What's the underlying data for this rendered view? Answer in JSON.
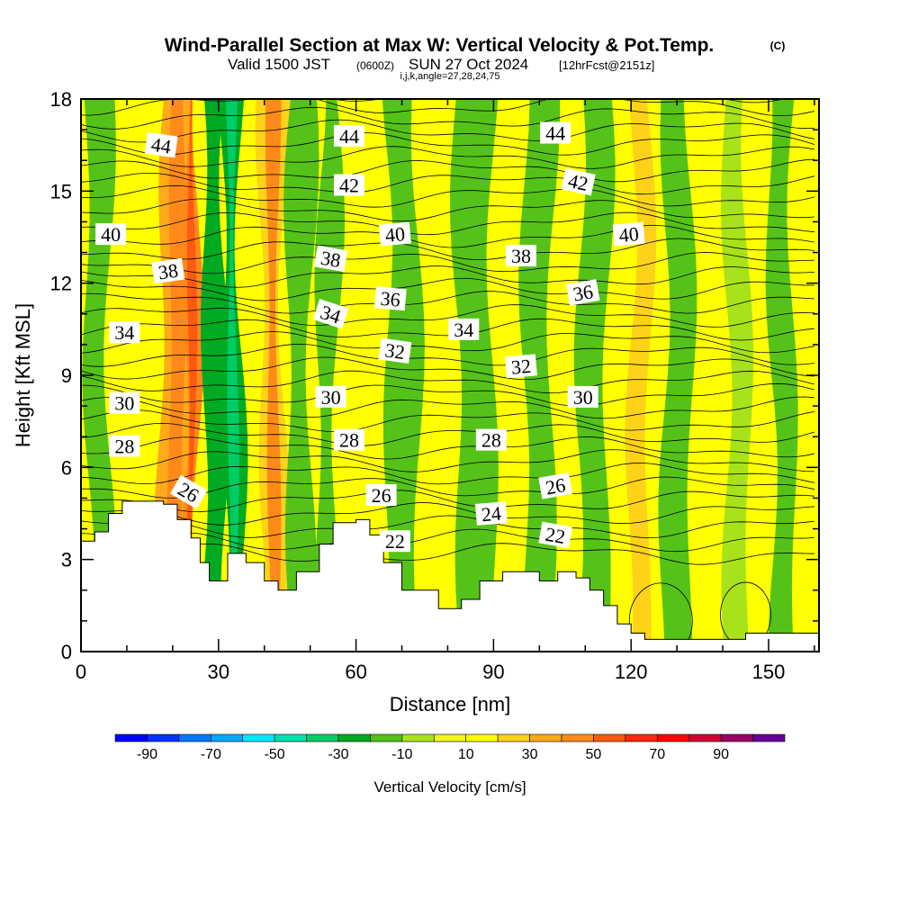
{
  "header": {
    "title": "Wind-Parallel Section at Max W: Vertical Velocity & Pot.Temp.",
    "copyright": "(C)",
    "valid_prefix": "Valid 1500 JST",
    "valid_utc": "(0600Z)",
    "valid_date": "SUN 27 Oct 2024",
    "forecast": "[12hrFcst@2151z]",
    "indices": "i,j,k,angle=27,28,24,75"
  },
  "chart_data": {
    "type": "heatmap",
    "xlabel": "Distance [nm]",
    "ylabel": "Height [Kft MSL]",
    "xlim": [
      0,
      161
    ],
    "ylim": [
      0,
      18
    ],
    "x_ticks": [
      0,
      30,
      60,
      90,
      120,
      150
    ],
    "y_ticks": [
      0,
      3,
      6,
      9,
      12,
      15,
      18
    ],
    "colorbar": {
      "label": "Vertical Velocity [cm/s]",
      "tick_labels": [
        "-90",
        "-70",
        "-50",
        "-30",
        "-10",
        "10",
        "30",
        "50",
        "70",
        "90"
      ],
      "bins": [
        {
          "from": -100,
          "to": -90,
          "color": "#0000ff"
        },
        {
          "from": -90,
          "to": -80,
          "color": "#0033ff"
        },
        {
          "from": -80,
          "to": -70,
          "color": "#0077ff"
        },
        {
          "from": -70,
          "to": -60,
          "color": "#00a8ff"
        },
        {
          "from": -60,
          "to": -50,
          "color": "#00e6ff"
        },
        {
          "from": -50,
          "to": -40,
          "color": "#00e0b0"
        },
        {
          "from": -40,
          "to": -30,
          "color": "#00cc66"
        },
        {
          "from": -30,
          "to": -20,
          "color": "#00aa22"
        },
        {
          "from": -20,
          "to": -10,
          "color": "#55c21a"
        },
        {
          "from": -10,
          "to": 0,
          "color": "#a8e21a"
        },
        {
          "from": 0,
          "to": 10,
          "color": "#f0f51a"
        },
        {
          "from": 10,
          "to": 20,
          "color": "#ffff00"
        },
        {
          "from": 20,
          "to": 30,
          "color": "#ffd21a"
        },
        {
          "from": 30,
          "to": 40,
          "color": "#ffaa1a"
        },
        {
          "from": 40,
          "to": 50,
          "color": "#ff8a1a"
        },
        {
          "from": 50,
          "to": 60,
          "color": "#ff5a10"
        },
        {
          "from": 60,
          "to": 70,
          "color": "#ff2a10"
        },
        {
          "from": 70,
          "to": 80,
          "color": "#ff0000"
        },
        {
          "from": 80,
          "to": 90,
          "color": "#cc0033"
        },
        {
          "from": 90,
          "to": 100,
          "color": "#990066"
        },
        {
          "from": 100,
          "to": 110,
          "color": "#660099"
        }
      ]
    },
    "velocity_bands": [
      {
        "x": 4,
        "width": 5,
        "w": -15
      },
      {
        "x": 13,
        "width": 6,
        "w": 10
      },
      {
        "x": 21,
        "width": 7,
        "w": 30
      },
      {
        "x": 24,
        "width": 3,
        "w": 45
      },
      {
        "x": 29,
        "width": 5,
        "w": -22
      },
      {
        "x": 33,
        "width": 4,
        "w": -25
      },
      {
        "x": 42,
        "width": 5,
        "w": 28
      },
      {
        "x": 48,
        "width": 5,
        "w": -12
      },
      {
        "x": 54,
        "width": 4,
        "w": -20
      },
      {
        "x": 60,
        "width": 6,
        "w": 12
      },
      {
        "x": 70,
        "width": 7,
        "w": -14
      },
      {
        "x": 78,
        "width": 6,
        "w": 12
      },
      {
        "x": 86,
        "width": 8,
        "w": -14
      },
      {
        "x": 100,
        "width": 6,
        "w": -12
      },
      {
        "x": 112,
        "width": 6,
        "w": -15
      },
      {
        "x": 122,
        "width": 4,
        "w": 22
      },
      {
        "x": 130,
        "width": 6,
        "w": -12
      },
      {
        "x": 143,
        "width": 5,
        "w": -10
      },
      {
        "x": 153,
        "width": 5,
        "w": -12
      }
    ],
    "terrain": [
      [
        0,
        3.6
      ],
      [
        3,
        3.9
      ],
      [
        6,
        4.5
      ],
      [
        9,
        4.9
      ],
      [
        18,
        4.8
      ],
      [
        21,
        4.3
      ],
      [
        24,
        3.7
      ],
      [
        26,
        2.9
      ],
      [
        28,
        2.3
      ],
      [
        32,
        3.2
      ],
      [
        36,
        2.9
      ],
      [
        40,
        2.3
      ],
      [
        43,
        2.0
      ],
      [
        47,
        2.6
      ],
      [
        52,
        3.5
      ],
      [
        55,
        4.2
      ],
      [
        60,
        4.3
      ],
      [
        63,
        3.8
      ],
      [
        66,
        2.9
      ],
      [
        70,
        2.0
      ],
      [
        75,
        2.0
      ],
      [
        78,
        1.4
      ],
      [
        83,
        1.7
      ],
      [
        87,
        2.3
      ],
      [
        92,
        2.6
      ],
      [
        96,
        2.6
      ],
      [
        100,
        2.3
      ],
      [
        104,
        2.6
      ],
      [
        108,
        2.4
      ],
      [
        111,
        2.0
      ],
      [
        114,
        1.5
      ],
      [
        117,
        0.9
      ],
      [
        120,
        0.6
      ],
      [
        123,
        0.4
      ],
      [
        140,
        0.4
      ],
      [
        145,
        0.6
      ],
      [
        161,
        0.6
      ]
    ],
    "contour_labels": [
      {
        "label": "44",
        "x": 17.5,
        "y": 16.5,
        "rot": 8
      },
      {
        "label": "44",
        "x": 58.5,
        "y": 16.8,
        "rot": 0
      },
      {
        "label": "44",
        "x": 103.5,
        "y": 16.9,
        "rot": 0
      },
      {
        "label": "42",
        "x": 58.5,
        "y": 15.2,
        "rot": 0
      },
      {
        "label": "42",
        "x": 108.5,
        "y": 15.3,
        "rot": 12
      },
      {
        "label": "40",
        "x": 6.5,
        "y": 13.6,
        "rot": 0
      },
      {
        "label": "40",
        "x": 68.5,
        "y": 13.6,
        "rot": -5
      },
      {
        "label": "40",
        "x": 119.5,
        "y": 13.6,
        "rot": -5
      },
      {
        "label": "38",
        "x": 19.0,
        "y": 12.4,
        "rot": -8
      },
      {
        "label": "38",
        "x": 54.5,
        "y": 12.8,
        "rot": 10
      },
      {
        "label": "38",
        "x": 96.0,
        "y": 12.9,
        "rot": 0
      },
      {
        "label": "36",
        "x": 67.5,
        "y": 11.5,
        "rot": 5
      },
      {
        "label": "36",
        "x": 109.5,
        "y": 11.7,
        "rot": -10
      },
      {
        "label": "34",
        "x": 9.5,
        "y": 10.4,
        "rot": 0
      },
      {
        "label": "34",
        "x": 54.5,
        "y": 11.0,
        "rot": 18
      },
      {
        "label": "34",
        "x": 83.5,
        "y": 10.5,
        "rot": 0
      },
      {
        "label": "32",
        "x": 68.5,
        "y": 9.8,
        "rot": 8
      },
      {
        "label": "32",
        "x": 96.0,
        "y": 9.3,
        "rot": -5
      },
      {
        "label": "30",
        "x": 9.5,
        "y": 8.1,
        "rot": 0
      },
      {
        "label": "30",
        "x": 54.5,
        "y": 8.3,
        "rot": 0
      },
      {
        "label": "30",
        "x": 109.5,
        "y": 8.3,
        "rot": 0
      },
      {
        "label": "28",
        "x": 9.5,
        "y": 6.7,
        "rot": 0
      },
      {
        "label": "28",
        "x": 58.5,
        "y": 6.9,
        "rot": 0
      },
      {
        "label": "28",
        "x": 89.5,
        "y": 6.9,
        "rot": 0
      },
      {
        "label": "26",
        "x": 23.5,
        "y": 5.2,
        "rot": 30
      },
      {
        "label": "26",
        "x": 65.5,
        "y": 5.1,
        "rot": 0
      },
      {
        "label": "26",
        "x": 103.5,
        "y": 5.4,
        "rot": -10
      },
      {
        "label": "24",
        "x": 89.5,
        "y": 4.5,
        "rot": -5
      },
      {
        "label": "22",
        "x": 68.5,
        "y": 3.6,
        "rot": 0
      },
      {
        "label": "22",
        "x": 103.5,
        "y": 3.8,
        "rot": 10
      }
    ]
  }
}
